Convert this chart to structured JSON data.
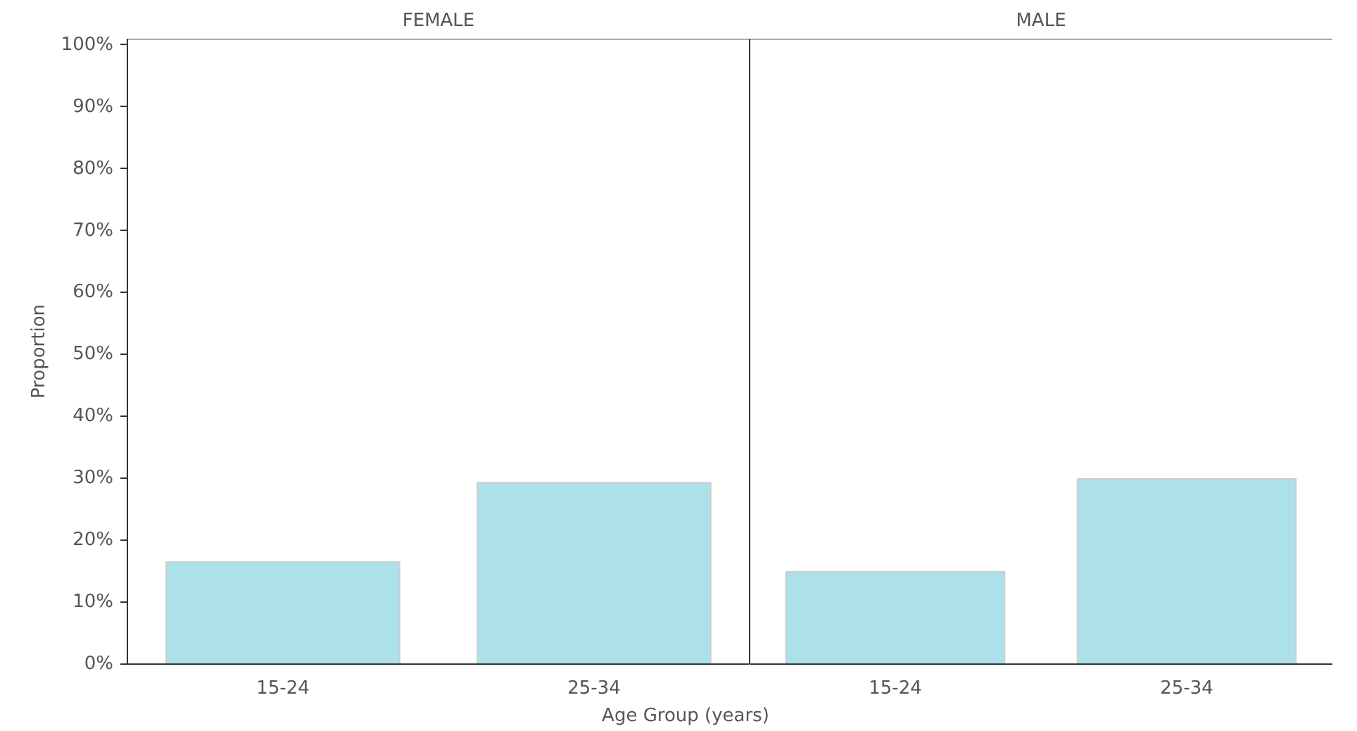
{
  "chart_data": [
    {
      "type": "bar",
      "title": "FEMALE",
      "ylabel": "Proportion",
      "xlabel": "Age Group (years)",
      "categories": [
        "15-24",
        "25-34"
      ],
      "values": [
        16.5,
        29.3
      ],
      "color": "#ade1ea",
      "ylim": [
        0,
        101
      ],
      "yticks": [
        {
          "value": 0,
          "label": "0%"
        },
        {
          "value": 10,
          "label": "10%"
        },
        {
          "value": 20,
          "label": "20%"
        },
        {
          "value": 30,
          "label": "30%"
        },
        {
          "value": 40,
          "label": "40%"
        },
        {
          "value": 50,
          "label": "50%"
        },
        {
          "value": 60,
          "label": "60%"
        },
        {
          "value": 70,
          "label": "70%"
        },
        {
          "value": 80,
          "label": "80%"
        },
        {
          "value": 90,
          "label": "90%"
        },
        {
          "value": 100,
          "label": "100%"
        }
      ]
    },
    {
      "type": "bar",
      "title": "MALE",
      "categories": [
        "15-24",
        "25-34"
      ],
      "values": [
        14.9,
        29.9
      ],
      "color": "#ade1ea",
      "ylim": [
        0,
        101
      ],
      "tick_labels": "x"
    }
  ]
}
